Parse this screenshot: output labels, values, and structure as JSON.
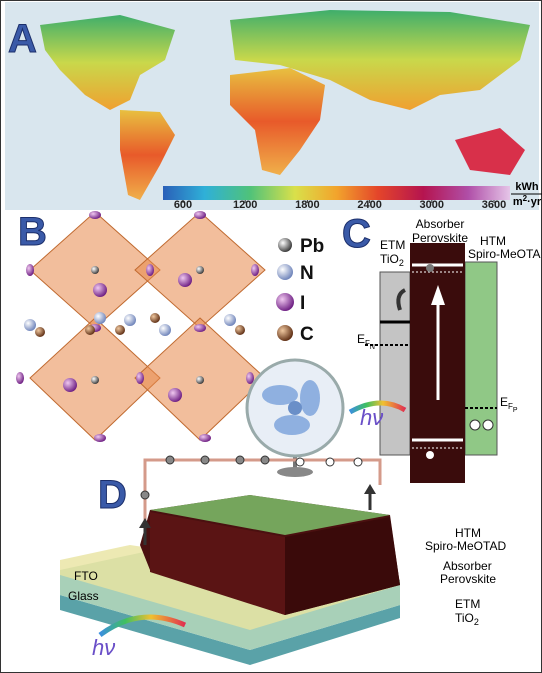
{
  "panel_a": {
    "label": "A",
    "colorbar": {
      "ticks": [
        600,
        1200,
        1800,
        2400,
        3000,
        3600
      ],
      "unit_top": "kWh",
      "unit_bottom": [
        "m",
        "2",
        "·yr"
      ]
    }
  },
  "panel_b": {
    "label": "B",
    "legend": [
      "Pb",
      "N",
      "I",
      "C"
    ]
  },
  "panel_c": {
    "label": "C",
    "absorber": [
      "Absorber",
      "Perovskite"
    ],
    "etm": [
      "ETM",
      [
        "TiO",
        "2"
      ]
    ],
    "htm": [
      "HTM",
      "Spiro-MeOTA"
    ],
    "fermi_n": [
      "E",
      "F",
      "N"
    ],
    "fermi_p": [
      "E",
      "F",
      "P"
    ],
    "photon": "hν"
  },
  "panel_d": {
    "label": "D",
    "htm": [
      "HTM",
      "Spiro-MeOTAD"
    ],
    "absorber": [
      "Absorber",
      "Perovskite"
    ],
    "etm": [
      "ETM",
      [
        "TiO",
        "2"
      ]
    ],
    "fto": "FTO",
    "glass": "Glass",
    "photon": "hν"
  }
}
